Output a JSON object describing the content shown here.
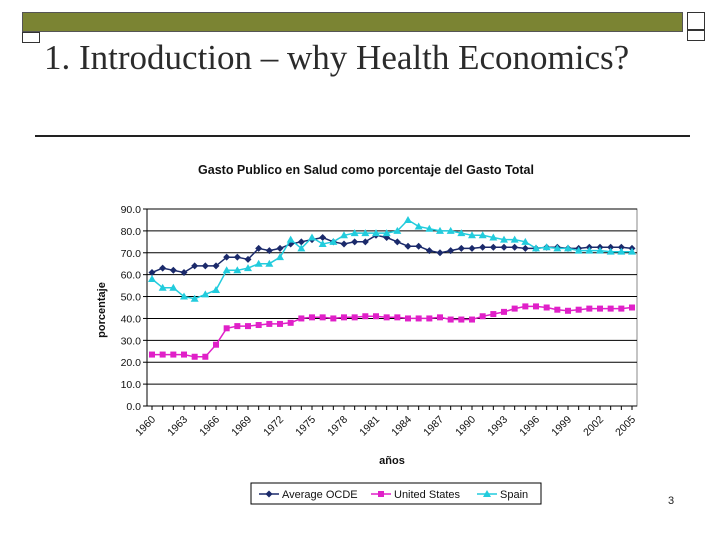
{
  "slide": {
    "title": "1. Introduction – why Health Economics?",
    "page_number": "3"
  },
  "colors": {
    "accent_bar": "#7b8433",
    "average_ocde": "#1b2a6b",
    "united_states": "#e020c8",
    "spain": "#22ccdd"
  },
  "chart_data": {
    "type": "line",
    "title": "Gasto Publico en Salud como porcentaje del Gasto Total",
    "xlabel": "años",
    "ylabel": "porcentaje",
    "ylim": [
      0,
      90
    ],
    "yticks": [
      "0.0",
      "10.0",
      "20.0",
      "30.0",
      "40.0",
      "50.0",
      "60.0",
      "70.0",
      "80.0",
      "90.0"
    ],
    "ytick_values": [
      0,
      10,
      20,
      30,
      40,
      50,
      60,
      70,
      80,
      90
    ],
    "grid": true,
    "x": [
      1960,
      1961,
      1962,
      1963,
      1964,
      1965,
      1966,
      1967,
      1968,
      1969,
      1970,
      1971,
      1972,
      1973,
      1974,
      1975,
      1976,
      1977,
      1978,
      1979,
      1980,
      1981,
      1982,
      1983,
      1984,
      1985,
      1986,
      1987,
      1988,
      1989,
      1990,
      1991,
      1992,
      1993,
      1994,
      1995,
      1996,
      1997,
      1998,
      1999,
      2000,
      2001,
      2002,
      2003,
      2004,
      2005
    ],
    "xtick_labels": [
      "1960",
      "1963",
      "1966",
      "1969",
      "1972",
      "1975",
      "1978",
      "1981",
      "1984",
      "1987",
      "1990",
      "1993",
      "1996",
      "1999",
      "2002",
      "2005"
    ],
    "legend": {
      "position": "bottom"
    },
    "series": [
      {
        "name": "Average OCDE",
        "marker": "diamond",
        "color": "#1b2a6b",
        "values": [
          61,
          63,
          62,
          61,
          64,
          64,
          64,
          68,
          68,
          67,
          72,
          71,
          72,
          74,
          75,
          76,
          77,
          75,
          74,
          75,
          75,
          78,
          77,
          75,
          73,
          73,
          71,
          70,
          71,
          72,
          72,
          72.5,
          72.5,
          72.5,
          72.5,
          72,
          72,
          72.5,
          72.5,
          72,
          72,
          72.5,
          72.5,
          72.5,
          72.5,
          72
        ]
      },
      {
        "name": "United States",
        "marker": "square",
        "color": "#e020c8",
        "values": [
          23.5,
          23.5,
          23.5,
          23.5,
          22.5,
          22.5,
          28,
          35.5,
          36.5,
          36.5,
          37,
          37.5,
          37.5,
          38,
          40,
          40.5,
          40.5,
          40,
          40.5,
          40.5,
          41,
          41,
          40.5,
          40.5,
          40,
          40,
          40,
          40.5,
          39.5,
          39.5,
          39.5,
          41,
          42,
          43,
          44.5,
          45.5,
          45.5,
          45,
          44,
          43.5,
          44,
          44.5,
          44.5,
          44.5,
          44.5,
          45
        ]
      },
      {
        "name": "Spain",
        "marker": "triangle",
        "color": "#22ccdd",
        "values": [
          58,
          54,
          54,
          50,
          49,
          51,
          53,
          62,
          62,
          63,
          65,
          65,
          68,
          76,
          72,
          77,
          74,
          75,
          78,
          79,
          79,
          79,
          79,
          80,
          85,
          82,
          81,
          80,
          80,
          79,
          78,
          78,
          77,
          76,
          76,
          75,
          72,
          72.5,
          72,
          72,
          71,
          71,
          71,
          70.5,
          70.5,
          70.5
        ]
      }
    ]
  }
}
